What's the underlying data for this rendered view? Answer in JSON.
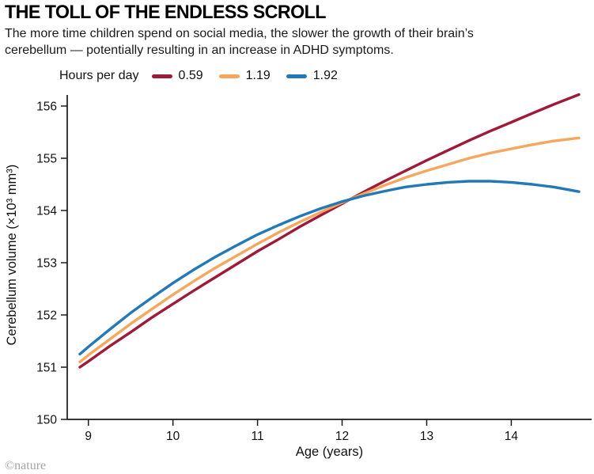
{
  "header": {
    "title": "THE TOLL OF THE ENDLESS SCROLL",
    "subtitle": "The more time children spend on social media, the slower the growth of their brain’s cerebellum — potentially resulting in an increase in ADHD symptoms."
  },
  "chart_data": {
    "type": "line",
    "title": "THE TOLL OF THE ENDLESS SCROLL",
    "xlabel": "Age (years)",
    "ylabel": "Cerebellum volume (×10³ mm³)",
    "legend_label": "Hours per day",
    "xlim": [
      8.75,
      14.95
    ],
    "ylim": [
      150,
      156.3
    ],
    "xticks": [
      9,
      10,
      11,
      12,
      13,
      14
    ],
    "yticks": [
      150,
      151,
      152,
      153,
      154,
      155,
      156
    ],
    "grid": false,
    "legend_position": "top",
    "x": [
      8.9,
      9.0,
      9.25,
      9.5,
      9.75,
      10.0,
      10.25,
      10.5,
      10.75,
      11.0,
      11.25,
      11.5,
      11.75,
      12.0,
      12.25,
      12.5,
      12.75,
      13.0,
      13.25,
      13.5,
      13.75,
      14.0,
      14.25,
      14.5,
      14.8
    ],
    "series": [
      {
        "name": "0.59",
        "color": "#9e1a38",
        "values": [
          151.0,
          151.11,
          151.4,
          151.67,
          151.95,
          152.21,
          152.47,
          152.72,
          152.97,
          153.22,
          153.45,
          153.69,
          153.91,
          154.13,
          154.35,
          154.56,
          154.76,
          154.96,
          155.15,
          155.34,
          155.52,
          155.69,
          155.86,
          156.03,
          156.22
        ]
      },
      {
        "name": "1.19",
        "color": "#f5a75e",
        "values": [
          151.1,
          151.23,
          151.53,
          151.83,
          152.11,
          152.39,
          152.65,
          152.9,
          153.13,
          153.36,
          153.58,
          153.78,
          153.97,
          154.15,
          154.32,
          154.48,
          154.63,
          154.76,
          154.88,
          155.0,
          155.1,
          155.18,
          155.26,
          155.33,
          155.39
        ]
      },
      {
        "name": "1.92",
        "color": "#2379b7",
        "values": [
          151.25,
          151.39,
          151.72,
          152.04,
          152.33,
          152.61,
          152.87,
          153.11,
          153.33,
          153.54,
          153.72,
          153.89,
          154.04,
          154.17,
          154.28,
          154.37,
          154.45,
          154.5,
          154.54,
          154.56,
          154.56,
          154.54,
          154.5,
          154.45,
          154.36
        ]
      }
    ]
  },
  "footer": {
    "credit": "©nature"
  }
}
